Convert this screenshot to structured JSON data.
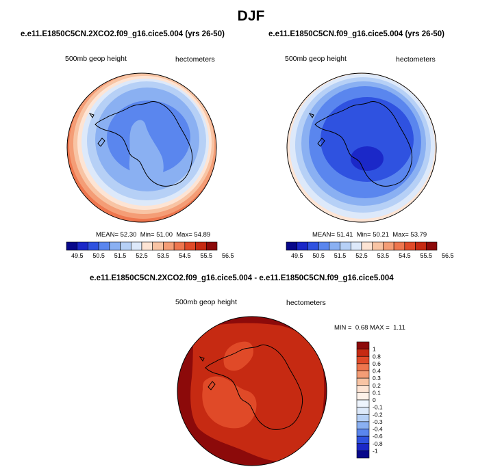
{
  "title": "DJF",
  "colors": {
    "scale": [
      "#08088a",
      "#1b28c8",
      "#2f52e0",
      "#5a86ee",
      "#8ab0f2",
      "#b6d0f6",
      "#dde9fa",
      "#fde4d4",
      "#f8c4a4",
      "#f49d76",
      "#ee764e",
      "#e04a28",
      "#c62a12",
      "#8c0a0a"
    ],
    "land_line": "#000000"
  },
  "panel_left": {
    "title": "e.e11.E1850C5CN.2XCO2.f09_g16.cice5.004 (yrs 26-50)",
    "left_label": "500mb geop height",
    "right_label": "hectometers",
    "stats": {
      "mean_label": "MEAN=",
      "mean": "52.30",
      "min_label": "Min=",
      "min": "51.00",
      "max_label": "Max=",
      "max": "54.89"
    }
  },
  "panel_right": {
    "title": "e.e11.E1850C5CN.f09_g16.cice5.004 (yrs 26-50)",
    "left_label": "500mb geop height",
    "right_label": "hectometers",
    "stats": {
      "mean_label": "MEAN=",
      "mean": "51.41",
      "min_label": "Min=",
      "min": "50.21",
      "max_label": "Max=",
      "max": "53.79"
    }
  },
  "panel_diff": {
    "title": "e.e11.E1850C5CN.2XCO2.f09_g16.cice5.004 - e.e11.E1850C5CN.f09_g16.cice5.004",
    "left_label": "500mb geop height",
    "right_label": "hectometers",
    "stats": {
      "min_label": "MIN =",
      "min": "0.68",
      "max_label": "MAX =",
      "max": "1.11"
    }
  },
  "chart_data": [
    {
      "type": "heatmap",
      "projection": "south-polar-stereographic",
      "title": "e.e11.E1850C5CN.2XCO2.f09_g16.cice5.004 (yrs 26-50)",
      "variable": "500mb geop height",
      "units": "hectometers",
      "mean": 52.3,
      "min": 51.0,
      "max": 54.89,
      "contour_levels": [
        49.5,
        50,
        50.5,
        51,
        51.5,
        52,
        52.5,
        53,
        53.5,
        54,
        54.5,
        55,
        55.5,
        56,
        56.5
      ],
      "colorbar_tick_labels": [
        "49.5",
        "50.5",
        "51.5",
        "52.5",
        "53.5",
        "54.5",
        "55.5",
        "56.5"
      ]
    },
    {
      "type": "heatmap",
      "projection": "south-polar-stereographic",
      "title": "e.e11.E1850C5CN.f09_g16.cice5.004 (yrs 26-50)",
      "variable": "500mb geop height",
      "units": "hectometers",
      "mean": 51.41,
      "min": 50.21,
      "max": 53.79,
      "contour_levels": [
        49.5,
        50,
        50.5,
        51,
        51.5,
        52,
        52.5,
        53,
        53.5,
        54,
        54.5,
        55,
        55.5,
        56,
        56.5
      ],
      "colorbar_tick_labels": [
        "49.5",
        "50.5",
        "51.5",
        "52.5",
        "53.5",
        "54.5",
        "55.5",
        "56.5"
      ]
    },
    {
      "type": "heatmap",
      "projection": "south-polar-stereographic",
      "title": "e.e11.E1850C5CN.2XCO2.f09_g16.cice5.004 - e.e11.E1850C5CN.f09_g16.cice5.004",
      "variable": "500mb geop height",
      "units": "hectometers",
      "min": 0.68,
      "max": 1.11,
      "contour_levels": [
        -1,
        -0.8,
        -0.6,
        -0.4,
        -0.3,
        -0.2,
        -0.1,
        0,
        0.1,
        0.2,
        0.3,
        0.4,
        0.6,
        0.8,
        1
      ],
      "colorbar_tick_labels": [
        "1",
        "0.8",
        "0.6",
        "0.4",
        "0.3",
        "0.2",
        "0.1",
        "0",
        "-0.1",
        "-0.2",
        "-0.3",
        "-0.4",
        "-0.6",
        "-0.8",
        "-1"
      ]
    }
  ]
}
